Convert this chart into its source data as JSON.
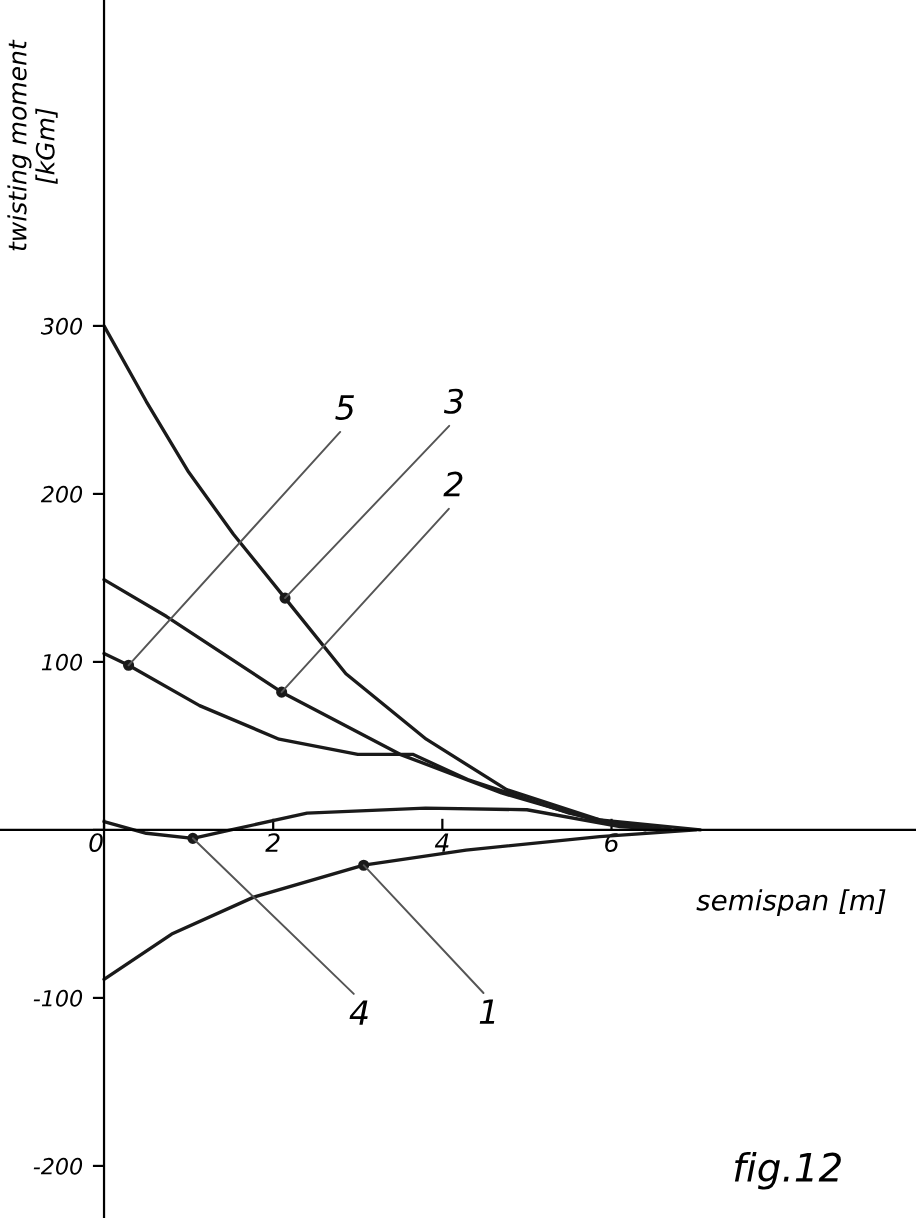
{
  "chart_data": {
    "type": "line",
    "xlabel": "semispan [m]",
    "ylabel": "twisting moment\n[kGm]",
    "annotations": [
      "fig.12"
    ],
    "xlim": [
      -1.23,
      9.6
    ],
    "ylim": [
      -231,
      494
    ],
    "xticks": [
      0,
      2,
      4,
      6
    ],
    "yticks": [
      -200,
      -100,
      {
        "value": 0,
        "label": null
      },
      100,
      200,
      300
    ],
    "grid": false,
    "legend": false,
    "marker": "none",
    "line_style": "solid",
    "series": [
      {
        "name": "1",
        "color": "#1a1a1a",
        "x": [
          0,
          0.8,
          1.77,
          3.07,
          4.28,
          5.86,
          7.0
        ],
        "values": [
          -89,
          -62,
          -40,
          -21,
          -12,
          -4,
          0
        ]
      },
      {
        "name": "2",
        "color": "#1a1a1a",
        "x": [
          0,
          0.74,
          2.1,
          3.5,
          4.7,
          5.86,
          6.7
        ],
        "values": [
          149,
          127,
          82,
          45,
          22,
          5,
          0
        ]
      },
      {
        "name": "3",
        "color": "#1a1a1a",
        "x": [
          0,
          0.5,
          1.0,
          1.53,
          2.14,
          2.86,
          3.81,
          4.76,
          5.86,
          7.05
        ],
        "values": [
          300,
          255,
          213,
          176,
          138,
          93,
          54,
          24,
          6,
          0
        ]
      },
      {
        "name": "4",
        "color": "#1a1a1a",
        "x": [
          0,
          0.5,
          1.05,
          1.5,
          2.4,
          3.8,
          5.0,
          6.1,
          6.7
        ],
        "values": [
          5,
          -2,
          -5,
          0,
          10,
          13,
          12,
          2,
          0
        ]
      },
      {
        "name": "5",
        "color": "#1a1a1a",
        "x": [
          0,
          0.29,
          1.13,
          2.07,
          3.0,
          3.65,
          4.3,
          5.5,
          6.4
        ],
        "values": [
          105,
          98,
          74,
          54,
          45,
          45,
          30,
          10,
          0
        ]
      }
    ]
  }
}
